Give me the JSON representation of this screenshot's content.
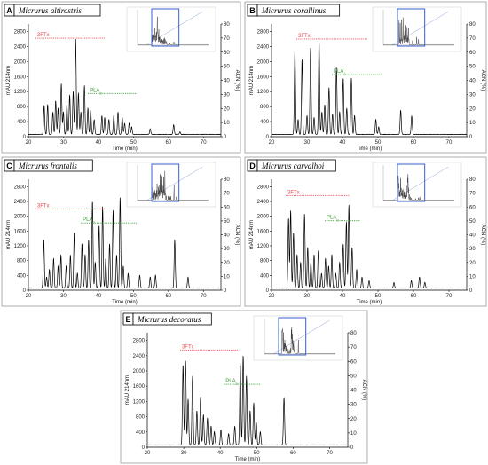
{
  "chart_data": [
    {
      "type": "line",
      "panel": "A",
      "title": "Micrurus altirostris",
      "xlabel": "Time (min)",
      "ylabel": "mAU 214nm",
      "y2label": "ACN (%)",
      "xlim": [
        20,
        75
      ],
      "ylim": [
        0,
        3000
      ],
      "y2lim": [
        0,
        80
      ],
      "xticks": [
        "20",
        "30",
        "40",
        "50",
        "60",
        "70"
      ],
      "yticks": [
        "0",
        "400",
        "800",
        "1200",
        "1600",
        "2000",
        "2400",
        "2800"
      ],
      "y2ticks": [
        "0",
        "10",
        "20",
        "30",
        "40",
        "50",
        "60",
        "70",
        "80"
      ],
      "fractions": [
        {
          "label": "3FTx",
          "x_start": 22,
          "x_end": 42,
          "y": 2620,
          "color": "#e8484f"
        },
        {
          "label": "PLA",
          "sub": "2",
          "x_start": 37,
          "x_end": 51,
          "y": 1150,
          "color": "#3c9c3c"
        }
      ],
      "peaks": [
        [
          24.5,
          780
        ],
        [
          25.5,
          800
        ],
        [
          27,
          600
        ],
        [
          27.8,
          900
        ],
        [
          28.5,
          700
        ],
        [
          29.4,
          1350
        ],
        [
          30,
          600
        ],
        [
          31,
          800
        ],
        [
          31.8,
          1050
        ],
        [
          32.8,
          1150
        ],
        [
          33.5,
          2530
        ],
        [
          34.3,
          1100
        ],
        [
          35,
          600
        ],
        [
          36,
          1300
        ],
        [
          37,
          700
        ],
        [
          37.8,
          650
        ],
        [
          38.8,
          400
        ],
        [
          41,
          500
        ],
        [
          41.8,
          450
        ],
        [
          43,
          400
        ],
        [
          44.4,
          500
        ],
        [
          45.6,
          600
        ],
        [
          46.8,
          450
        ],
        [
          47.5,
          300
        ],
        [
          48.8,
          300
        ],
        [
          49.5,
          200
        ],
        [
          54.8,
          150
        ],
        [
          61.5,
          260
        ],
        [
          63.3,
          70
        ]
      ],
      "inset_box": [
        45,
        70
      ]
    },
    {
      "type": "line",
      "panel": "B",
      "title": "Micrurus corallinus",
      "xlabel": "Time (min)",
      "ylabel": "mAU 214nm",
      "y2label": "ACN (%)",
      "xlim": [
        20,
        75
      ],
      "ylim": [
        0,
        3000
      ],
      "y2lim": [
        0,
        80
      ],
      "xticks": [
        "20",
        "30",
        "40",
        "50",
        "60",
        "70"
      ],
      "yticks": [
        "0",
        "400",
        "800",
        "1200",
        "1600",
        "2000",
        "2400",
        "2800"
      ],
      "y2ticks": [
        "0",
        "10",
        "20",
        "30",
        "40",
        "50",
        "60",
        "70",
        "80"
      ],
      "fractions": [
        {
          "label": "3FTx",
          "x_start": 27,
          "x_end": 47,
          "y": 2600,
          "color": "#e8484f"
        },
        {
          "label": "PLA",
          "sub": "2",
          "x_start": 37,
          "x_end": 51,
          "y": 1650,
          "color": "#3c9c3c"
        }
      ],
      "peaks": [
        [
          26.6,
          2250
        ],
        [
          27.5,
          400
        ],
        [
          28.6,
          2000
        ],
        [
          30,
          500
        ],
        [
          31,
          2300
        ],
        [
          32,
          450
        ],
        [
          33.4,
          2500
        ],
        [
          34.2,
          600
        ],
        [
          35,
          800
        ],
        [
          36.2,
          1250
        ],
        [
          37.2,
          550
        ],
        [
          38.3,
          1800
        ],
        [
          39.2,
          600
        ],
        [
          40.2,
          1500
        ],
        [
          41.2,
          700
        ],
        [
          42.5,
          1500
        ],
        [
          43.4,
          500
        ],
        [
          49.4,
          400
        ],
        [
          50.2,
          200
        ],
        [
          56.4,
          650
        ],
        [
          59.5,
          500
        ]
      ],
      "inset_box": [
        45,
        70
      ]
    },
    {
      "type": "line",
      "panel": "C",
      "title": "Micrurus frontalis",
      "xlabel": "Time (min)",
      "ylabel": "mAU 214nm",
      "y2label": "ACN (%)",
      "xlim": [
        20,
        75
      ],
      "ylim": [
        0,
        3000
      ],
      "y2lim": [
        0,
        80
      ],
      "xticks": [
        "20",
        "30",
        "40",
        "50",
        "60",
        "70"
      ],
      "yticks": [
        "0",
        "400",
        "800",
        "1200",
        "1600",
        "2000",
        "2400",
        "2800"
      ],
      "y2ticks": [
        "0",
        "10",
        "20",
        "30",
        "40",
        "50",
        "60",
        "70",
        "80"
      ],
      "fractions": [
        {
          "label": "3FTx",
          "x_start": 22,
          "x_end": 42,
          "y": 2200,
          "color": "#e8484f"
        },
        {
          "label": "PLA",
          "sub": "2",
          "x_start": 35,
          "x_end": 51,
          "y": 1820,
          "color": "#3c9c3c"
        }
      ],
      "peaks": [
        [
          24.4,
          1300
        ],
        [
          25.2,
          300
        ],
        [
          26,
          500
        ],
        [
          27.2,
          800
        ],
        [
          28.5,
          600
        ],
        [
          29.3,
          900
        ],
        [
          30.8,
          600
        ],
        [
          32,
          900
        ],
        [
          33.1,
          1500
        ],
        [
          34,
          400
        ],
        [
          35.3,
          1200
        ],
        [
          36.2,
          900
        ],
        [
          37.2,
          1300
        ],
        [
          38.3,
          2350
        ],
        [
          39.1,
          700
        ],
        [
          40.2,
          1700
        ],
        [
          41.2,
          2200
        ],
        [
          42.1,
          800
        ],
        [
          43.2,
          1200
        ],
        [
          44.2,
          2100
        ],
        [
          45.2,
          900
        ],
        [
          46.2,
          2450
        ],
        [
          47.1,
          600
        ],
        [
          48.5,
          400
        ],
        [
          51.8,
          350
        ],
        [
          54.8,
          300
        ],
        [
          56.3,
          350
        ],
        [
          61.8,
          1300
        ],
        [
          65.6,
          300
        ]
      ],
      "inset_box": [
        45,
        70
      ]
    },
    {
      "type": "line",
      "panel": "D",
      "title": "Micrurus carvalhoi",
      "xlabel": "Time (min)",
      "ylabel": "mAU 214nm",
      "y2label": "ACN (%)",
      "xlim": [
        20,
        75
      ],
      "ylim": [
        0,
        3000
      ],
      "y2lim": [
        0,
        80
      ],
      "xticks": [
        "20",
        "30",
        "40",
        "50",
        "60",
        "70"
      ],
      "yticks": [
        "0",
        "400",
        "800",
        "1200",
        "1600",
        "2000",
        "2400",
        "2800"
      ],
      "y2ticks": [
        "0",
        "10",
        "20",
        "30",
        "40",
        "50",
        "60",
        "70",
        "80"
      ],
      "fractions": [
        {
          "label": "3FTx",
          "x_start": 24,
          "x_end": 42,
          "y": 2560,
          "color": "#e8484f"
        },
        {
          "label": "PLA",
          "sub": "2",
          "x_start": 35,
          "x_end": 45,
          "y": 1880,
          "color": "#3c9c3c"
        }
      ],
      "peaks": [
        [
          24.8,
          1900
        ],
        [
          25.4,
          2100
        ],
        [
          26.2,
          1500
        ],
        [
          27.2,
          900
        ],
        [
          28.2,
          700
        ],
        [
          29.3,
          2000
        ],
        [
          30.2,
          1100
        ],
        [
          31.1,
          700
        ],
        [
          32,
          900
        ],
        [
          33.2,
          1000
        ],
        [
          34.1,
          400
        ],
        [
          35.2,
          800
        ],
        [
          36.1,
          600
        ],
        [
          37,
          900
        ],
        [
          38.1,
          400
        ],
        [
          39.2,
          700
        ],
        [
          40.2,
          1200
        ],
        [
          41.1,
          1800
        ],
        [
          41.8,
          2250
        ],
        [
          42.7,
          1100
        ],
        [
          44,
          500
        ],
        [
          45.5,
          300
        ],
        [
          47.5,
          200
        ],
        [
          54.5,
          150
        ],
        [
          59.4,
          200
        ],
        [
          61.7,
          300
        ],
        [
          63.2,
          150
        ]
      ],
      "inset_box": [
        45,
        70
      ]
    },
    {
      "type": "line",
      "panel": "E",
      "title": "Micrurus decoratus",
      "xlabel": "Time (min)",
      "ylabel": "mAU 214nm",
      "y2label": "ACN (%)",
      "xlim": [
        20,
        75
      ],
      "ylim": [
        0,
        3000
      ],
      "y2lim": [
        0,
        80
      ],
      "xticks": [
        "20",
        "30",
        "40",
        "50",
        "60",
        "70"
      ],
      "yticks": [
        "0",
        "400",
        "800",
        "1200",
        "1600",
        "2000",
        "2400",
        "2800"
      ],
      "y2ticks": [
        "0",
        "10",
        "20",
        "30",
        "40",
        "50",
        "60",
        "70",
        "80"
      ],
      "fractions": [
        {
          "label": "3FTx",
          "x_start": 29,
          "x_end": 45,
          "y": 2550,
          "color": "#e8484f"
        },
        {
          "label": "PLA",
          "sub": "2",
          "x_start": 41,
          "x_end": 51,
          "y": 1650,
          "color": "#3c9c3c"
        }
      ],
      "peaks": [
        [
          29.8,
          2100
        ],
        [
          30.5,
          2200
        ],
        [
          31.2,
          1200
        ],
        [
          32.4,
          1800
        ],
        [
          33.6,
          900
        ],
        [
          34.6,
          1250
        ],
        [
          35.4,
          800
        ],
        [
          36.5,
          700
        ],
        [
          37.5,
          500
        ],
        [
          38.4,
          350
        ],
        [
          40.2,
          400
        ],
        [
          42.3,
          300
        ],
        [
          44,
          500
        ],
        [
          45.5,
          2150
        ],
        [
          46.3,
          2350
        ],
        [
          47.2,
          1800
        ],
        [
          48.2,
          900
        ],
        [
          49.2,
          1100
        ],
        [
          49.9,
          600
        ],
        [
          51,
          350
        ],
        [
          57.5,
          1250
        ]
      ],
      "inset_box": [
        45,
        70
      ]
    }
  ]
}
